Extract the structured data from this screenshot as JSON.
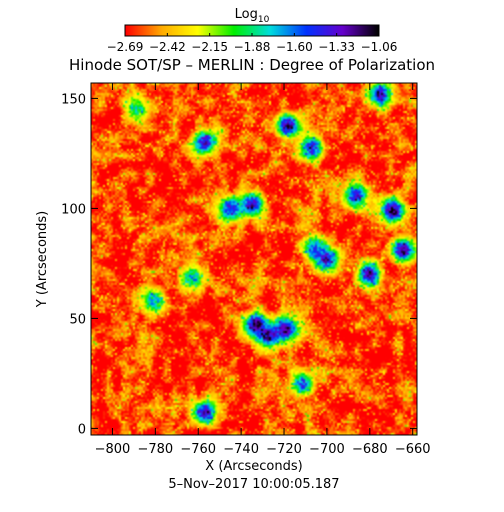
{
  "chart_data": {
    "type": "heatmap",
    "title": "Hinode SOT/SP – MERLIN : Degree of Polarization",
    "xlabel": "X (Arcseconds)",
    "ylabel": "Y (Arcseconds)",
    "date": "5–Nov–2017 10:00:05.187",
    "colorbar_label_base": "Log",
    "colorbar_label_sub": "10",
    "colorbar_ticks": [
      "−2.69",
      "−2.42",
      "−2.15",
      "−1.88",
      "−1.60",
      "−1.33",
      "−1.06"
    ],
    "colorbar_range": [
      -2.69,
      -1.06
    ],
    "colormap": [
      "#ff0000",
      "#ffaa00",
      "#ffff00",
      "#00ee00",
      "#00dddd",
      "#0033ff",
      "#6600cc",
      "#000000"
    ],
    "xlim": [
      -810,
      -658
    ],
    "ylim": [
      -3,
      157
    ],
    "x_ticks": [
      -800,
      -780,
      -760,
      -740,
      -720,
      -700,
      -680,
      -660
    ],
    "x_tick_labels": [
      "−800",
      "−780",
      "−760",
      "−740",
      "−720",
      "−700",
      "−680",
      "−660"
    ],
    "y_ticks": [
      0,
      50,
      100,
      150
    ],
    "y_tick_labels": [
      "0",
      "50",
      "100",
      "150"
    ],
    "background_level": -2.62,
    "enhanced_regions": [
      {
        "x": -733,
        "y": 47,
        "peak": -1.15
      },
      {
        "x": -719,
        "y": 45,
        "peak": -1.12
      },
      {
        "x": -727,
        "y": 42,
        "peak": -1.2
      },
      {
        "x": -745,
        "y": 100,
        "peak": -1.35
      },
      {
        "x": -735,
        "y": 102,
        "peak": -1.28
      },
      {
        "x": -686,
        "y": 106,
        "peak": -1.4
      },
      {
        "x": -669,
        "y": 99,
        "peak": -1.08
      },
      {
        "x": -664,
        "y": 81,
        "peak": -1.15
      },
      {
        "x": -706,
        "y": 82,
        "peak": -1.5
      },
      {
        "x": -700,
        "y": 77,
        "peak": -1.3
      },
      {
        "x": -680,
        "y": 70,
        "peak": -1.2
      },
      {
        "x": -718,
        "y": 138,
        "peak": -1.25
      },
      {
        "x": -707,
        "y": 128,
        "peak": -1.4
      },
      {
        "x": -757,
        "y": 130,
        "peak": -1.3
      },
      {
        "x": -675,
        "y": 152,
        "peak": -1.25
      },
      {
        "x": -781,
        "y": 58,
        "peak": -1.7
      },
      {
        "x": -757,
        "y": 7,
        "peak": -1.25
      },
      {
        "x": -711,
        "y": 20,
        "peak": -1.5
      },
      {
        "x": -763,
        "y": 68,
        "peak": -1.7
      },
      {
        "x": -789,
        "y": 146,
        "peak": -1.8
      }
    ]
  }
}
